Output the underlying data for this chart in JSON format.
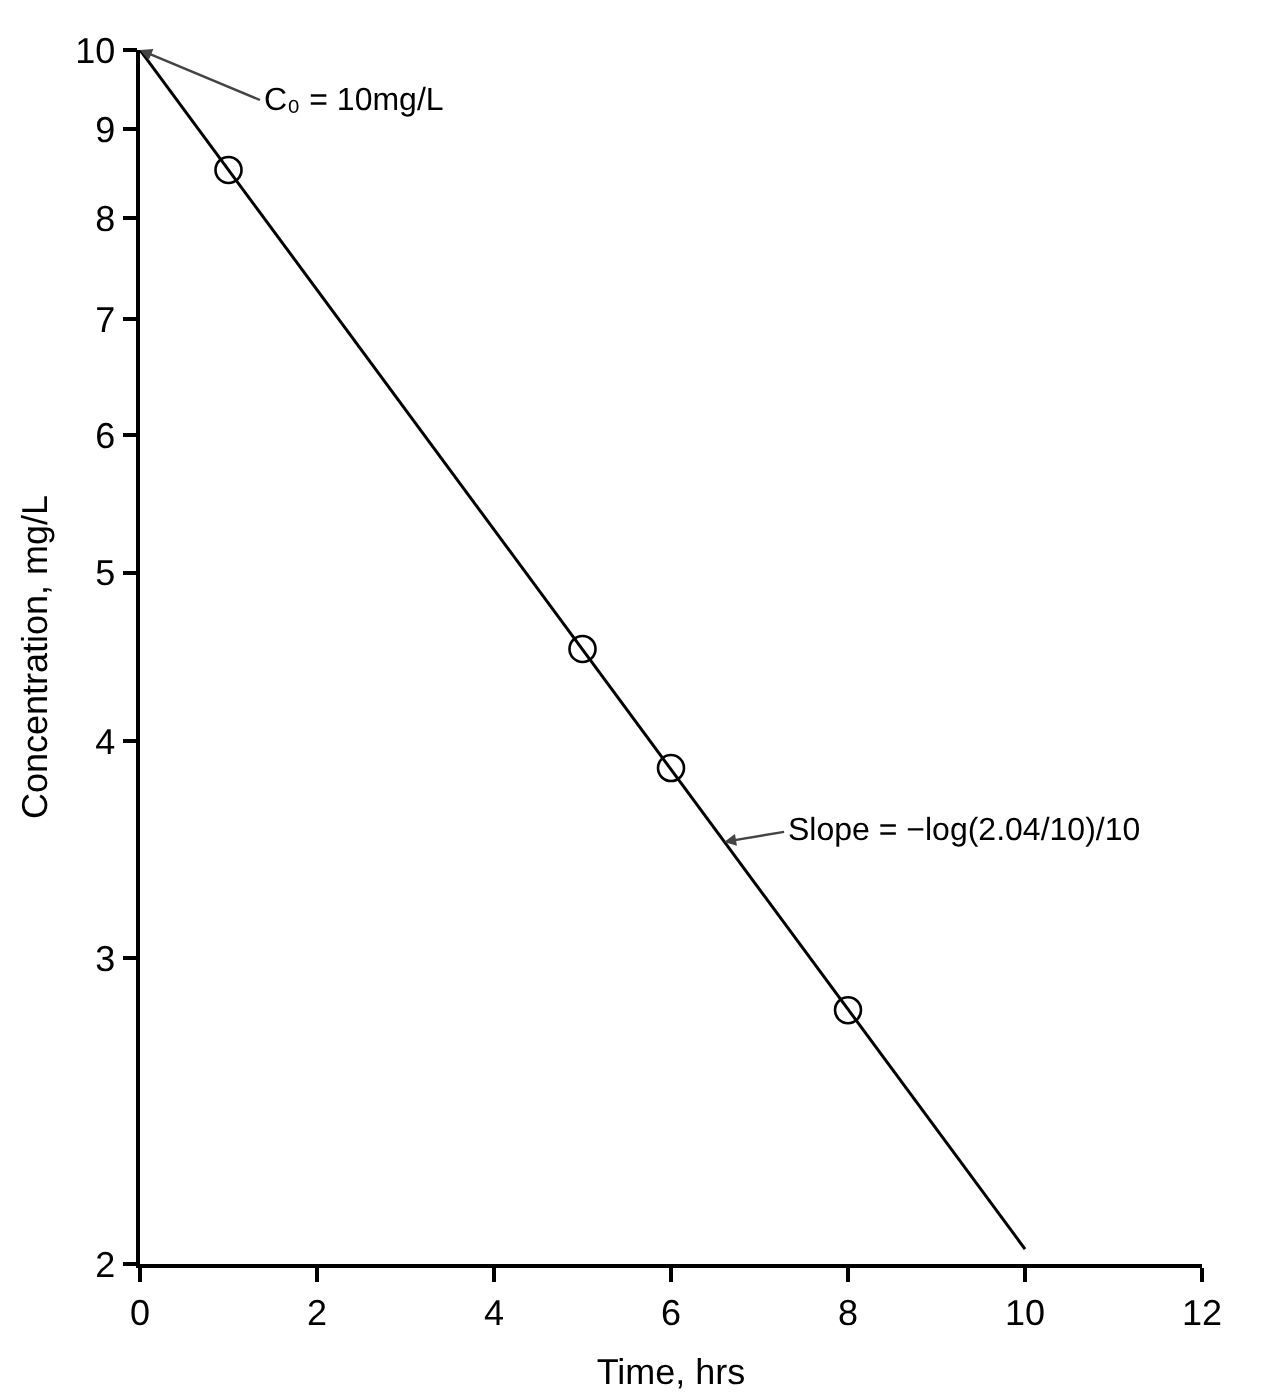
{
  "chart_data": {
    "type": "scatter",
    "xlabel": "Time, hrs",
    "ylabel": "Concentration, mg/L",
    "log": "y",
    "grid": false,
    "xlim": [
      0,
      12
    ],
    "xticks": [
      0,
      2,
      4,
      6,
      8,
      10,
      12
    ],
    "ylim": [
      2,
      10
    ],
    "yticks": [
      2,
      3,
      4,
      5,
      6,
      7,
      8,
      9,
      10
    ],
    "series": [
      {
        "type": "line",
        "color": "#000000",
        "marker": "none",
        "line_style": "solid",
        "x": [
          0,
          10
        ],
        "values": [
          10,
          2.04
        ]
      },
      {
        "color": "#000000",
        "marker": "circle",
        "x": [
          1,
          5,
          6,
          8
        ],
        "values": [
          8.53,
          4.52,
          3.86,
          2.8
        ]
      }
    ],
    "annotations": [
      {
        "text": "C₀ = 10mg/L",
        "x": 0,
        "y": 10
      },
      {
        "text": "Slope = −log(2.04/10)/10",
        "x": 6.6,
        "y": 3.5
      }
    ]
  }
}
